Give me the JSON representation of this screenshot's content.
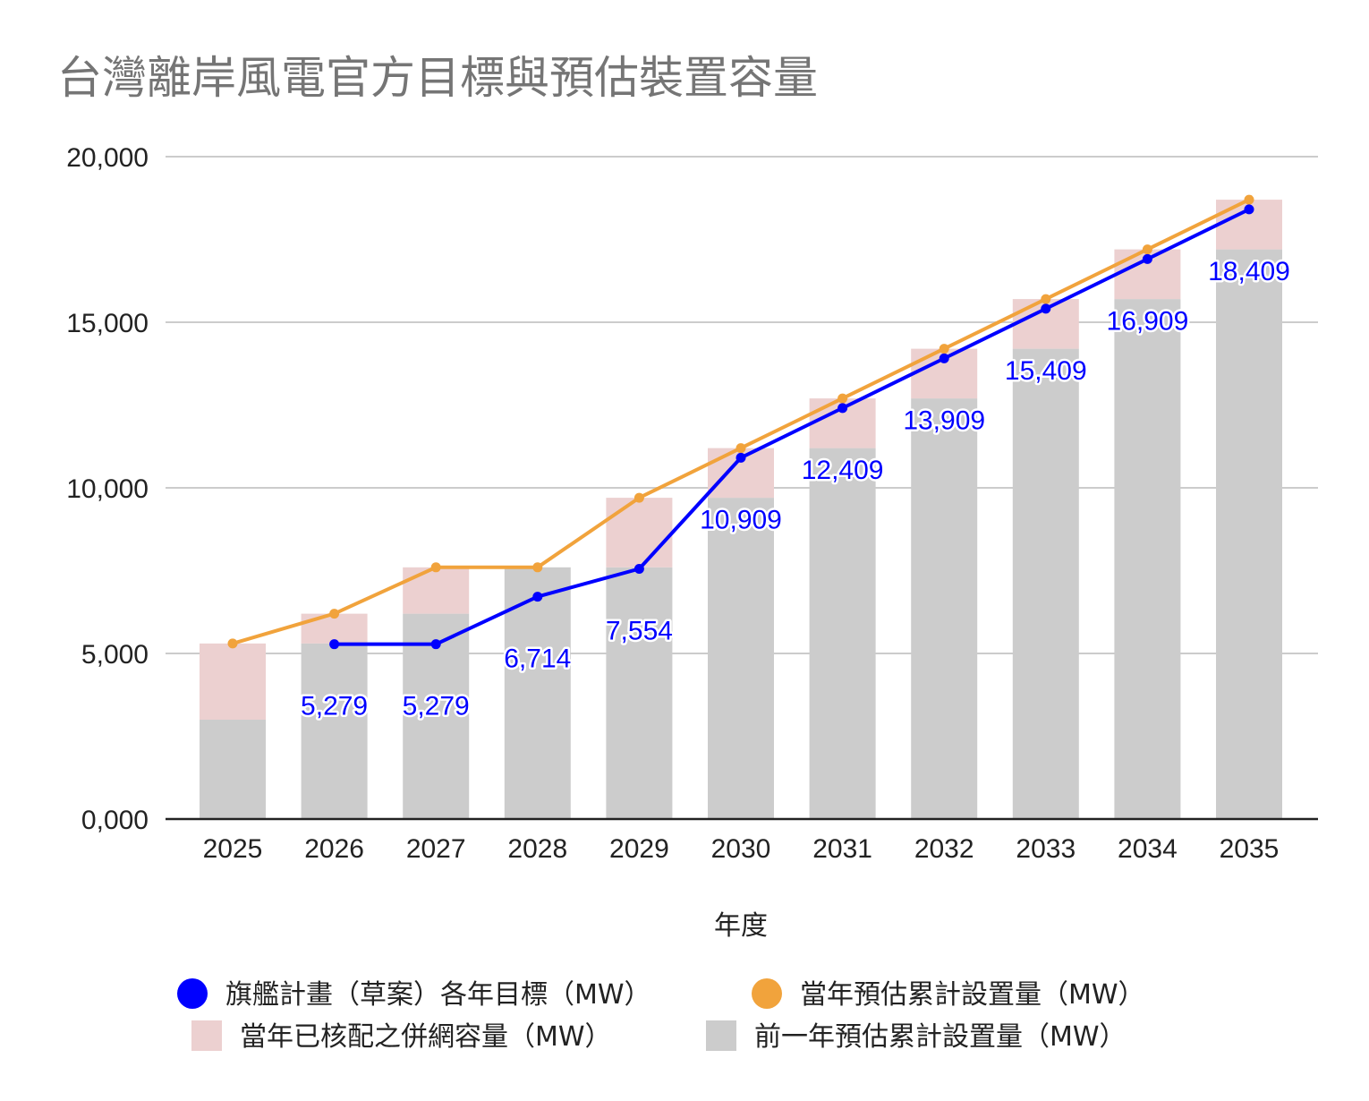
{
  "chart_data": {
    "type": "bar",
    "title": "台灣離岸風電官方目標與預估裝置容量",
    "xlabel": "年度",
    "ylabel": "",
    "ylim": [
      0,
      20000
    ],
    "yticks": [
      "0,000",
      "5,000",
      "10,000",
      "15,000",
      "20,000"
    ],
    "grid": true,
    "legend_position": "bottom",
    "categories": [
      "2025",
      "2026",
      "2027",
      "2028",
      "2029",
      "2030",
      "2031",
      "2032",
      "2033",
      "2034",
      "2035"
    ],
    "series": [
      {
        "name": "前一年預估累計設置量（MW）",
        "kind": "stacked-bar",
        "color": "#cccccc",
        "values": [
          3000,
          5300,
          6200,
          7600,
          7600,
          9700,
          11200,
          12700,
          14200,
          15700,
          17200
        ]
      },
      {
        "name": "當年已核配之併網容量（MW）",
        "kind": "stacked-bar",
        "color": "#ecd0d0",
        "values": [
          2300,
          900,
          1400,
          0,
          2100,
          1500,
          1500,
          1500,
          1500,
          1500,
          1500
        ]
      },
      {
        "name": "當年預估累計設置量（MW）",
        "kind": "line",
        "color": "#f1a33c",
        "values": [
          5300,
          6200,
          7600,
          7600,
          9700,
          11200,
          12700,
          14200,
          15700,
          17200,
          18700
        ]
      },
      {
        "name": "旗艦計畫（草案）各年目標（MW）",
        "kind": "line",
        "color": "#0000ff",
        "values": [
          null,
          5279,
          5279,
          6714,
          7554,
          10909,
          12409,
          13909,
          15409,
          16909,
          18409
        ],
        "data_labels": [
          "",
          "5,279",
          "5,279",
          "6,714",
          "7,554",
          "10,909",
          "12,409",
          "13,909",
          "15,409",
          "16,909",
          "18,409"
        ]
      }
    ],
    "legend": [
      {
        "label": "旗艦計畫（草案）各年目標（MW）",
        "color": "#0000ff",
        "shape": "circle"
      },
      {
        "label": "當年預估累計設置量（MW）",
        "color": "#f1a33c",
        "shape": "circle"
      },
      {
        "label": "當年已核配之併網容量（MW）",
        "color": "#ecd0d0",
        "shape": "square"
      },
      {
        "label": "前一年預估累計設置量（MW）",
        "color": "#cccccc",
        "shape": "square"
      }
    ]
  }
}
